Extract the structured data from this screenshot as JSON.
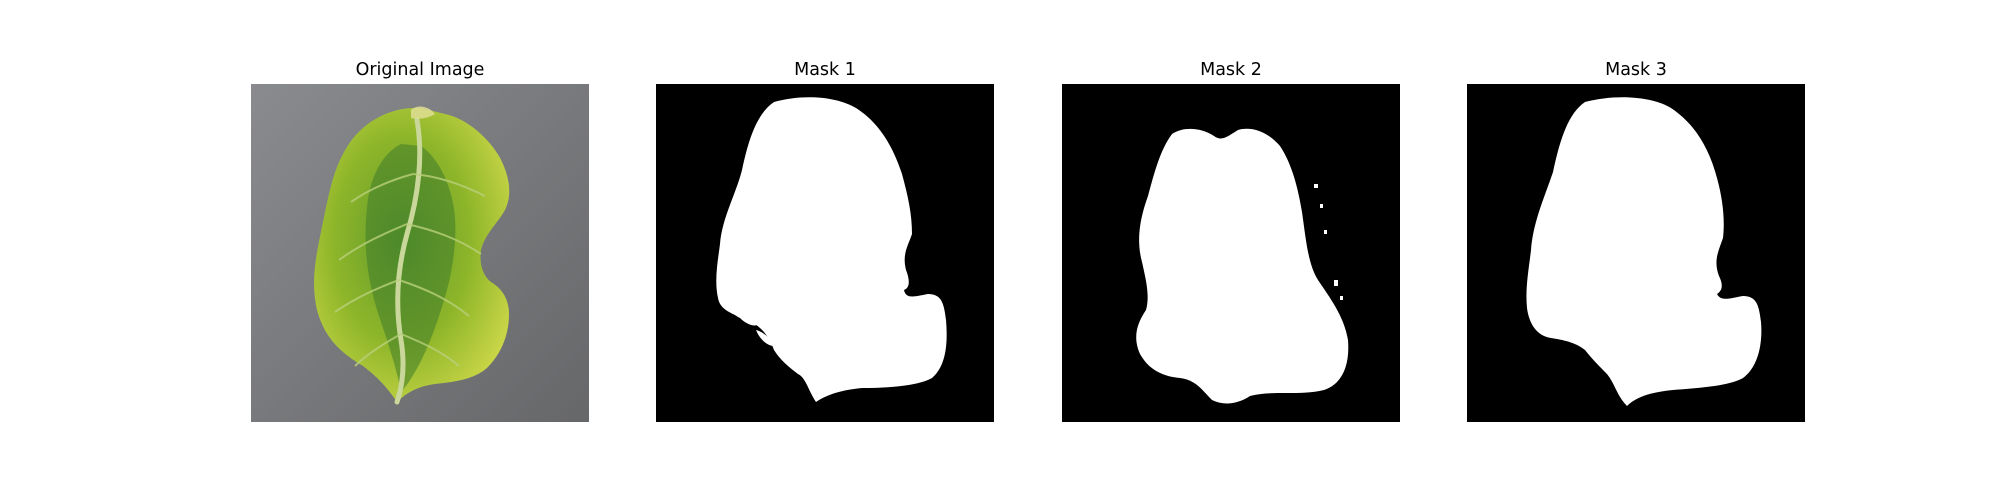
{
  "figure": {
    "panels": [
      {
        "title": "Original Image",
        "kind": "photo",
        "subject": "leaf-photo"
      },
      {
        "title": "Mask 1",
        "kind": "mask"
      },
      {
        "title": "Mask 2",
        "kind": "mask"
      },
      {
        "title": "Mask 3",
        "kind": "mask"
      }
    ]
  },
  "colors": {
    "background": "#ffffff",
    "mask_foreground": "#ffffff",
    "mask_background": "#000000",
    "photo_background": "#77787c",
    "leaf_light": "#cfd94a",
    "leaf_mid": "#8fb62a",
    "leaf_dark": "#3f7c2a",
    "leaf_vein": "#c9d89a"
  }
}
